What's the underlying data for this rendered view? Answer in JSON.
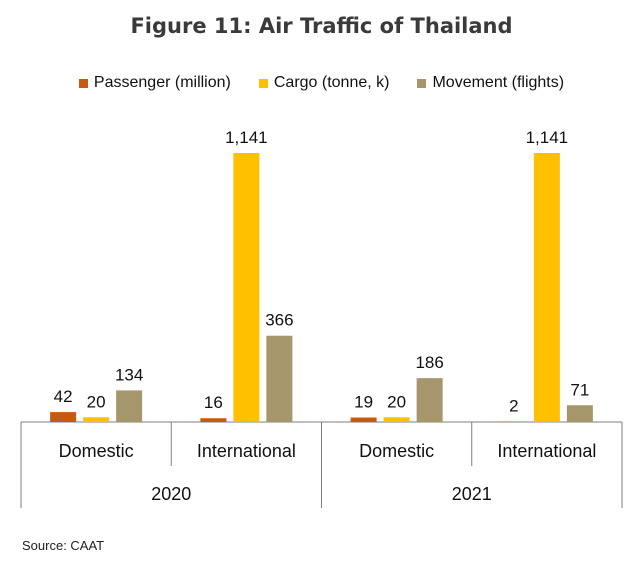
{
  "chart_data": {
    "type": "bar",
    "title": "Figure 11: Air Traffic of Thailand",
    "groups": [
      {
        "year": "2020",
        "categories": [
          "Domestic",
          "International"
        ]
      },
      {
        "year": "2021",
        "categories": [
          "Domestic",
          "International"
        ]
      }
    ],
    "series": [
      {
        "name": "Passenger (million)",
        "color": "#C55A11",
        "values": [
          42,
          16,
          19,
          2
        ],
        "labels": [
          "42",
          "16",
          "19",
          "2"
        ]
      },
      {
        "name": "Cargo (tonne, k)",
        "color": "#FFC000",
        "values": [
          20,
          1141,
          20,
          1141
        ],
        "labels": [
          "20",
          "1,141",
          "20",
          "1,141"
        ]
      },
      {
        "name": "Movement (flights)",
        "color": "#A5976B",
        "values": [
          134,
          366,
          186,
          71
        ],
        "labels": [
          "134",
          "366",
          "186",
          "71"
        ]
      }
    ],
    "ylim": [
      0,
      1141
    ],
    "grid": false,
    "legend_position": "top",
    "source": "Source: CAAT"
  }
}
